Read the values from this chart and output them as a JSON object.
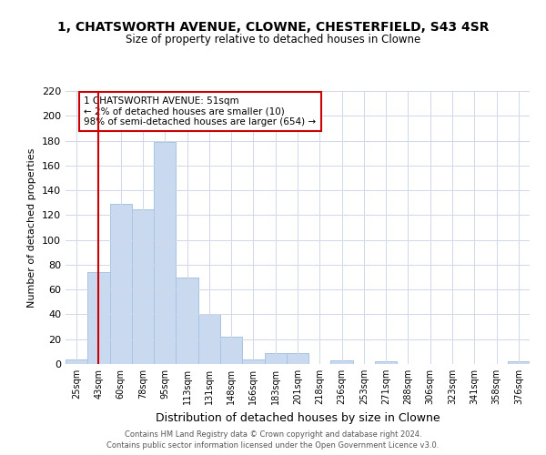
{
  "title": "1, CHATSWORTH AVENUE, CLOWNE, CHESTERFIELD, S43 4SR",
  "subtitle": "Size of property relative to detached houses in Clowne",
  "xlabel": "Distribution of detached houses by size in Clowne",
  "ylabel": "Number of detached properties",
  "bar_labels": [
    "25sqm",
    "43sqm",
    "60sqm",
    "78sqm",
    "95sqm",
    "113sqm",
    "131sqm",
    "148sqm",
    "166sqm",
    "183sqm",
    "201sqm",
    "218sqm",
    "236sqm",
    "253sqm",
    "271sqm",
    "288sqm",
    "306sqm",
    "323sqm",
    "341sqm",
    "358sqm",
    "376sqm"
  ],
  "bar_values": [
    4,
    74,
    129,
    125,
    179,
    70,
    40,
    22,
    4,
    9,
    9,
    0,
    3,
    0,
    2,
    0,
    0,
    0,
    0,
    0,
    2
  ],
  "bar_color": "#c9daf0",
  "bar_edgecolor": "#a8c4e0",
  "vline_x": 1,
  "vline_color": "#cc0000",
  "annotation_title": "1 CHATSWORTH AVENUE: 51sqm",
  "annotation_line1": "← 2% of detached houses are smaller (10)",
  "annotation_line2": "98% of semi-detached houses are larger (654) →",
  "annotation_box_color": "#ffffff",
  "annotation_border_color": "#cc0000",
  "ylim": [
    0,
    220
  ],
  "yticks": [
    0,
    20,
    40,
    60,
    80,
    100,
    120,
    140,
    160,
    180,
    200,
    220
  ],
  "footer1": "Contains HM Land Registry data © Crown copyright and database right 2024.",
  "footer2": "Contains public sector information licensed under the Open Government Licence v3.0.",
  "bg_color": "#ffffff",
  "grid_color": "#d0d8e8"
}
